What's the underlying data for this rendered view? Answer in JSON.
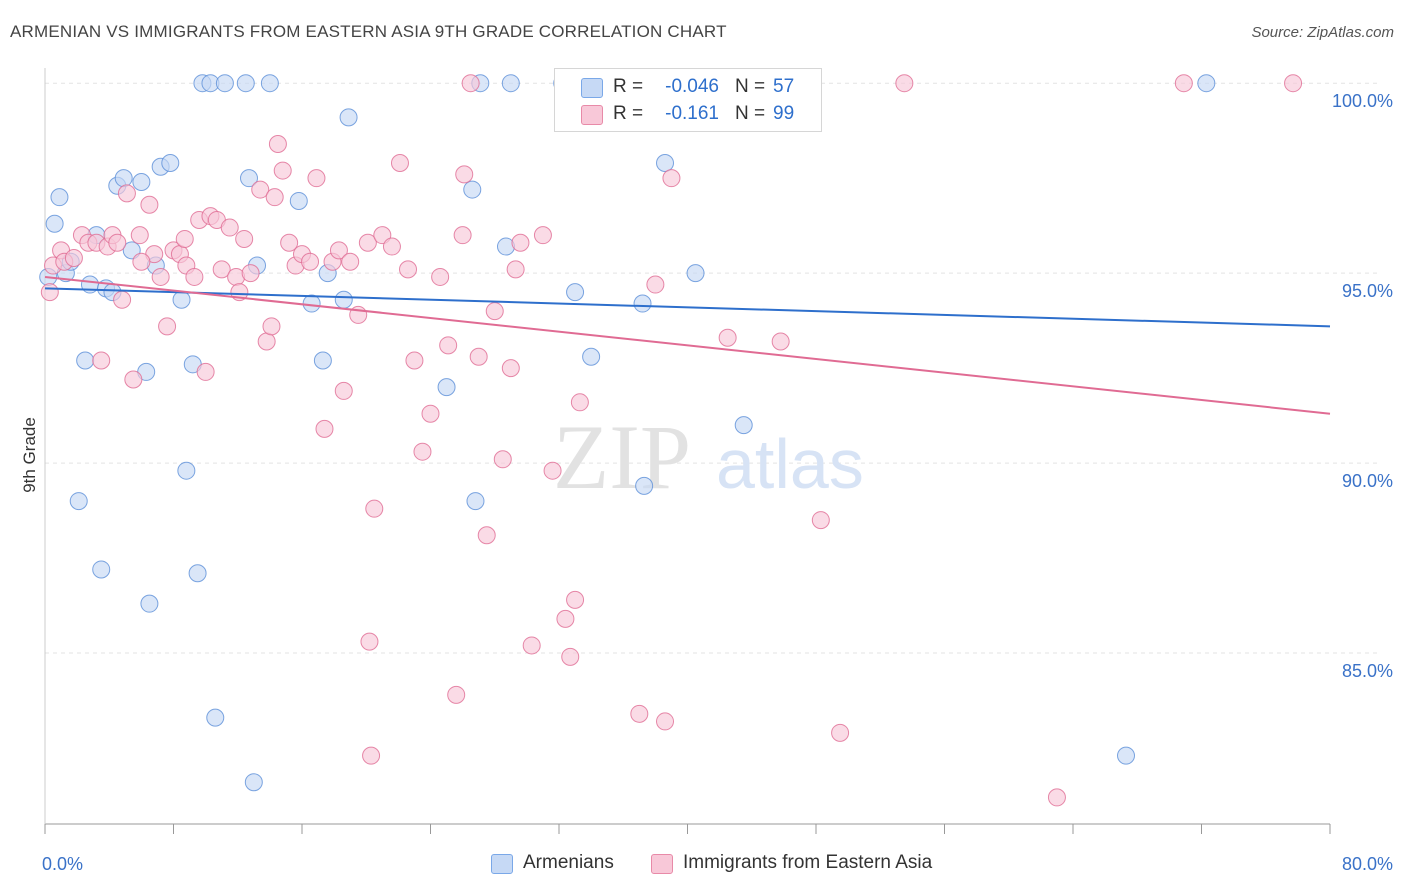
{
  "header": {
    "title": "ARMENIAN VS IMMIGRANTS FROM EASTERN ASIA 9TH GRADE CORRELATION CHART",
    "source": "Source: ZipAtlas.com"
  },
  "watermark": {
    "zip": "ZIP",
    "atlas": "atlas"
  },
  "legend": {
    "rows": [
      {
        "r_label": "R =",
        "r_value": "-0.046",
        "n_label": "N =",
        "n_value": "57",
        "color": "#7aa8e8",
        "fill": "#c6d9f5"
      },
      {
        "r_label": "R =",
        "r_value": "-0.161",
        "n_label": "N =",
        "n_value": "99",
        "color": "#e88aa8",
        "fill": "#f8c8d8"
      }
    ]
  },
  "bottom_legend": {
    "armenians": "Armenians",
    "immigrants": "Immigrants from Eastern Asia"
  },
  "chart_data": {
    "type": "scatter",
    "title": "ARMENIAN VS IMMIGRANTS FROM EASTERN ASIA 9TH GRADE CORRELATION CHART",
    "xlabel": "",
    "ylabel": "9th Grade",
    "xlim": [
      0,
      80
    ],
    "ylim": [
      80.5,
      100.4
    ],
    "x_tick_labels": [
      "0.0%",
      "80.0%"
    ],
    "y_ticks": [
      100,
      95,
      90,
      85
    ],
    "y_tick_labels": [
      "100.0%",
      "95.0%",
      "90.0%",
      "85.0%"
    ],
    "grid": true,
    "legend_position": "top-center",
    "series": [
      {
        "name": "Armenians",
        "color": "#5b8fd8",
        "fill": "#c6d9f5",
        "trend": {
          "x": [
            0,
            80
          ],
          "y": [
            94.6,
            93.6
          ],
          "color": "#2e6fcc"
        },
        "points": [
          [
            0.2,
            94.9
          ],
          [
            0.6,
            96.3
          ],
          [
            0.9,
            97.0
          ],
          [
            1.3,
            95.0
          ],
          [
            1.6,
            95.3
          ],
          [
            2.1,
            89.0
          ],
          [
            2.5,
            92.7
          ],
          [
            2.8,
            94.7
          ],
          [
            3.2,
            96.0
          ],
          [
            3.5,
            87.2
          ],
          [
            3.8,
            94.6
          ],
          [
            4.2,
            94.5
          ],
          [
            4.5,
            97.3
          ],
          [
            4.9,
            97.5
          ],
          [
            5.4,
            95.6
          ],
          [
            6.0,
            97.4
          ],
          [
            6.3,
            92.4
          ],
          [
            6.5,
            86.3
          ],
          [
            6.9,
            95.2
          ],
          [
            7.2,
            97.8
          ],
          [
            7.8,
            97.9
          ],
          [
            8.5,
            94.3
          ],
          [
            8.8,
            89.8
          ],
          [
            9.2,
            92.6
          ],
          [
            9.5,
            87.1
          ],
          [
            9.8,
            100.0
          ],
          [
            10.3,
            100.0
          ],
          [
            10.6,
            83.3
          ],
          [
            11.2,
            100.0
          ],
          [
            12.5,
            100.0
          ],
          [
            12.7,
            97.5
          ],
          [
            13.2,
            95.2
          ],
          [
            13.0,
            81.6
          ],
          [
            14.0,
            100.0
          ],
          [
            15.8,
            96.9
          ],
          [
            16.6,
            94.2
          ],
          [
            17.3,
            92.7
          ],
          [
            17.6,
            95.0
          ],
          [
            18.6,
            94.3
          ],
          [
            18.9,
            99.1
          ],
          [
            25.0,
            92.0
          ],
          [
            26.6,
            97.2
          ],
          [
            26.8,
            89.0
          ],
          [
            27.1,
            100.0
          ],
          [
            28.7,
            95.7
          ],
          [
            29.0,
            100.0
          ],
          [
            32.2,
            100.0
          ],
          [
            33.0,
            94.5
          ],
          [
            34.0,
            92.8
          ],
          [
            34.6,
            100.0
          ],
          [
            37.2,
            94.2
          ],
          [
            37.3,
            89.4
          ],
          [
            38.6,
            97.9
          ],
          [
            40.5,
            95.0
          ],
          [
            43.5,
            91.0
          ],
          [
            67.3,
            82.3
          ],
          [
            72.3,
            100.0
          ]
        ]
      },
      {
        "name": "Immigrants from Eastern Asia",
        "color": "#e06b93",
        "fill": "#f8c8d8",
        "trend": {
          "x": [
            0,
            80
          ],
          "y": [
            94.9,
            91.3
          ],
          "color": "#e06b93"
        },
        "points": [
          [
            0.3,
            94.5
          ],
          [
            0.5,
            95.2
          ],
          [
            1.0,
            95.6
          ],
          [
            1.2,
            95.3
          ],
          [
            1.8,
            95.4
          ],
          [
            2.3,
            96.0
          ],
          [
            2.7,
            95.8
          ],
          [
            3.2,
            95.8
          ],
          [
            3.5,
            92.7
          ],
          [
            3.9,
            95.7
          ],
          [
            4.2,
            96.0
          ],
          [
            4.5,
            95.8
          ],
          [
            4.8,
            94.3
          ],
          [
            5.1,
            97.1
          ],
          [
            5.5,
            92.2
          ],
          [
            5.9,
            96.0
          ],
          [
            6.5,
            96.8
          ],
          [
            6.8,
            95.5
          ],
          [
            7.2,
            94.9
          ],
          [
            7.6,
            93.6
          ],
          [
            8.0,
            95.6
          ],
          [
            8.4,
            95.5
          ],
          [
            8.8,
            95.2
          ],
          [
            9.3,
            94.9
          ],
          [
            9.6,
            96.4
          ],
          [
            10.0,
            92.4
          ],
          [
            10.3,
            96.5
          ],
          [
            10.7,
            96.4
          ],
          [
            11.0,
            95.1
          ],
          [
            11.5,
            96.2
          ],
          [
            11.9,
            94.9
          ],
          [
            12.4,
            95.9
          ],
          [
            12.8,
            95.0
          ],
          [
            13.4,
            97.2
          ],
          [
            13.8,
            93.2
          ],
          [
            14.1,
            93.6
          ],
          [
            14.5,
            98.4
          ],
          [
            14.8,
            97.7
          ],
          [
            15.2,
            95.8
          ],
          [
            15.6,
            95.2
          ],
          [
            16.0,
            95.5
          ],
          [
            16.5,
            95.3
          ],
          [
            16.9,
            97.5
          ],
          [
            17.4,
            90.9
          ],
          [
            17.9,
            95.3
          ],
          [
            18.3,
            95.6
          ],
          [
            18.6,
            91.9
          ],
          [
            19.0,
            95.3
          ],
          [
            19.5,
            93.9
          ],
          [
            20.1,
            95.8
          ],
          [
            20.5,
            88.8
          ],
          [
            21.0,
            96.0
          ],
          [
            21.6,
            95.7
          ],
          [
            22.1,
            97.9
          ],
          [
            22.6,
            95.1
          ],
          [
            23.0,
            92.7
          ],
          [
            23.5,
            90.3
          ],
          [
            24.0,
            91.3
          ],
          [
            24.6,
            94.9
          ],
          [
            25.1,
            93.1
          ],
          [
            25.6,
            83.9
          ],
          [
            26.1,
            97.6
          ],
          [
            26.5,
            100.0
          ],
          [
            27.0,
            92.8
          ],
          [
            27.5,
            88.1
          ],
          [
            28.0,
            94.0
          ],
          [
            28.5,
            90.1
          ],
          [
            29.0,
            92.5
          ],
          [
            29.3,
            95.1
          ],
          [
            29.6,
            95.8
          ],
          [
            30.3,
            85.2
          ],
          [
            31.0,
            96.0
          ],
          [
            31.6,
            89.8
          ],
          [
            32.4,
            85.9
          ],
          [
            32.7,
            84.9
          ],
          [
            33.0,
            86.4
          ],
          [
            33.3,
            91.6
          ],
          [
            37.0,
            83.4
          ],
          [
            37.5,
            100.0
          ],
          [
            38.0,
            94.7
          ],
          [
            38.6,
            83.2
          ],
          [
            39.0,
            97.5
          ],
          [
            40.5,
            100.0
          ],
          [
            42.5,
            93.3
          ],
          [
            44.0,
            100.0
          ],
          [
            45.8,
            93.2
          ],
          [
            48.3,
            88.5
          ],
          [
            49.5,
            82.9
          ],
          [
            53.5,
            100.0
          ],
          [
            63.0,
            81.2
          ],
          [
            70.9,
            100.0
          ],
          [
            77.7,
            100.0
          ],
          [
            20.2,
            85.3
          ],
          [
            20.3,
            82.3
          ],
          [
            8.7,
            95.9
          ],
          [
            26.0,
            96.0
          ],
          [
            14.3,
            97.0
          ],
          [
            12.1,
            94.5
          ],
          [
            6.0,
            95.3
          ]
        ]
      }
    ]
  }
}
